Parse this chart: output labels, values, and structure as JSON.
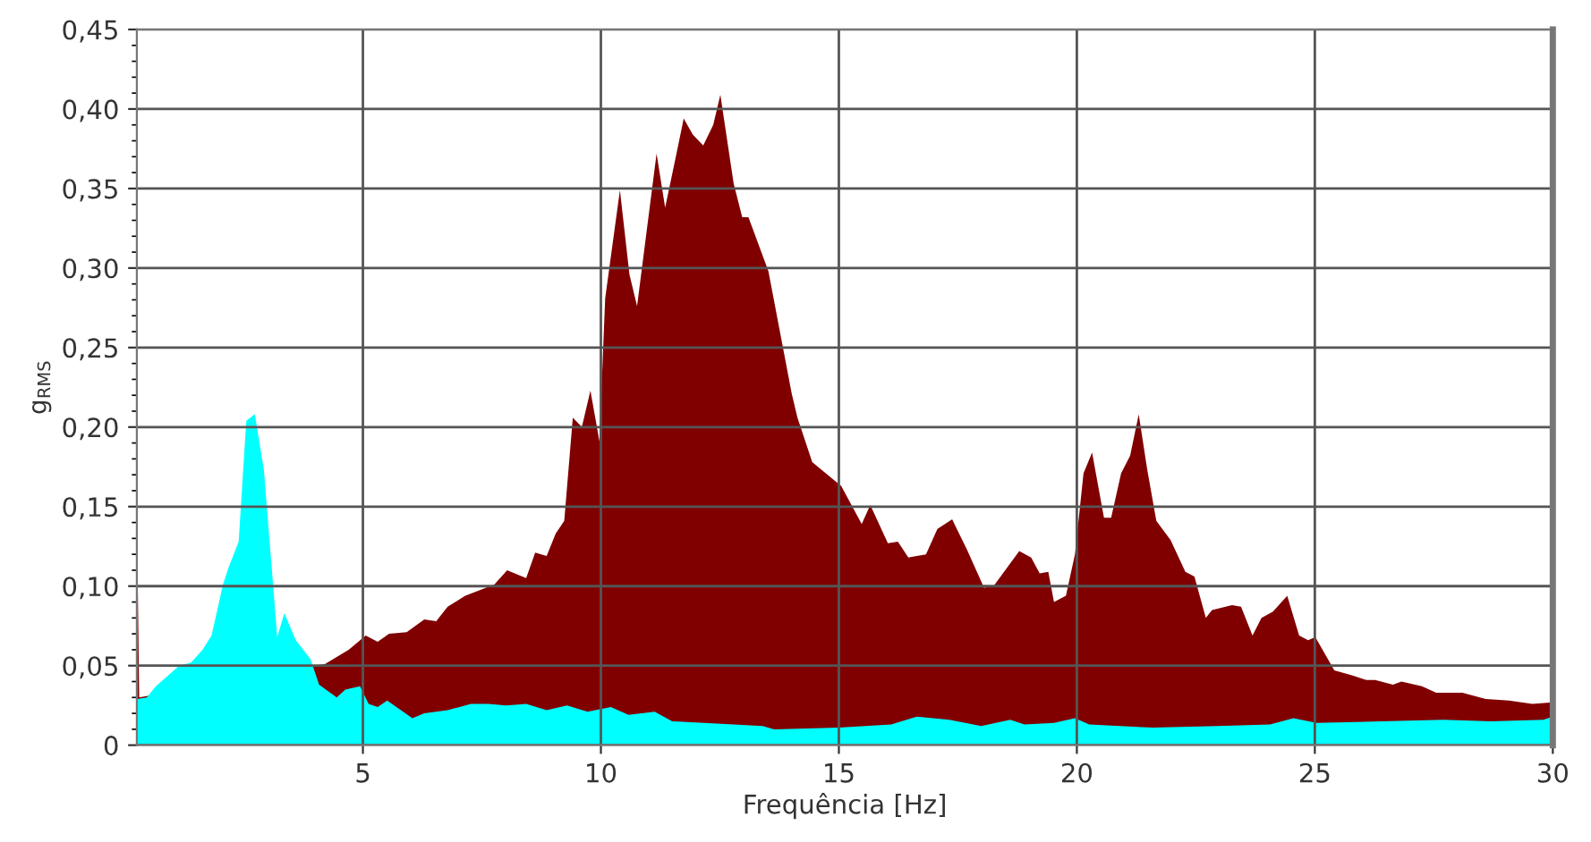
{
  "chart_data": {
    "type": "area",
    "xlabel": "Frequência [Hz]",
    "ylabel": "g$_{RMS}$",
    "xlim": [
      0.25,
      30
    ],
    "xticks": [
      5,
      10,
      15,
      20,
      25,
      30
    ],
    "ylim": [
      0,
      0.45
    ],
    "yticks": [
      0,
      {
        "value": 0.05,
        "label": "0,05"
      },
      {
        "value": 0.1,
        "label": "0,10"
      },
      {
        "value": 0.15,
        "label": "0,15"
      },
      {
        "value": 0.2,
        "label": "0,20"
      },
      {
        "value": 0.25,
        "label": "0,25"
      },
      {
        "value": 0.3,
        "label": "0,30"
      },
      {
        "value": 0.35,
        "label": "0,35"
      },
      {
        "value": 0.4,
        "label": "0,40"
      },
      {
        "value": 0.45,
        "label": "0,45"
      }
    ],
    "grid": true,
    "series": [
      {
        "color": "#800000",
        "x": [
          0.26,
          0.3,
          3.96,
          4.2,
          4.7,
          5.06,
          5.31,
          5.55,
          5.92,
          6.29,
          6.54,
          6.78,
          7.15,
          7.76,
          8.03,
          8.43,
          8.62,
          8.86,
          9.05,
          9.23,
          9.41,
          9.6,
          9.78,
          9.97,
          10.09,
          10.4,
          10.6,
          10.76,
          11.17,
          11.35,
          11.56,
          11.74,
          11.93,
          12.15,
          12.36,
          12.51,
          12.79,
          12.97,
          13.1,
          13.52,
          14.01,
          14.13,
          14.44,
          15.05,
          15.48,
          15.66,
          16.03,
          16.24,
          16.46,
          16.83,
          17.07,
          17.38,
          17.69,
          18.05,
          18.25,
          18.79,
          19.04,
          19.22,
          19.4,
          19.52,
          19.77,
          19.96,
          20.14,
          20.32,
          20.57,
          20.72,
          20.93,
          21.12,
          21.3,
          21.48,
          21.67,
          21.97,
          22.28,
          22.47,
          22.71,
          22.84,
          23.26,
          23.45,
          23.69,
          23.88,
          24.12,
          24.42,
          24.67,
          24.86,
          25.01,
          25.41,
          25.78,
          26.08,
          26.27,
          26.64,
          26.82,
          27.25,
          27.55,
          28.1,
          28.59,
          29.08,
          29.57,
          30.0
        ],
        "values": [
          0.124,
          0.03,
          0.05,
          0.051,
          0.06,
          0.069,
          0.065,
          0.07,
          0.071,
          0.079,
          0.078,
          0.087,
          0.094,
          0.101,
          0.11,
          0.105,
          0.121,
          0.119,
          0.133,
          0.141,
          0.206,
          0.2,
          0.223,
          0.191,
          0.281,
          0.349,
          0.296,
          0.276,
          0.372,
          0.338,
          0.368,
          0.394,
          0.384,
          0.377,
          0.39,
          0.409,
          0.353,
          0.332,
          0.332,
          0.298,
          0.221,
          0.206,
          0.178,
          0.163,
          0.139,
          0.151,
          0.127,
          0.128,
          0.118,
          0.12,
          0.136,
          0.142,
          0.123,
          0.099,
          0.1,
          0.122,
          0.118,
          0.108,
          0.109,
          0.09,
          0.094,
          0.12,
          0.171,
          0.184,
          0.143,
          0.143,
          0.171,
          0.182,
          0.208,
          0.173,
          0.141,
          0.129,
          0.109,
          0.106,
          0.08,
          0.085,
          0.088,
          0.087,
          0.069,
          0.08,
          0.084,
          0.094,
          0.069,
          0.066,
          0.068,
          0.047,
          0.044,
          0.041,
          0.041,
          0.038,
          0.04,
          0.037,
          0.033,
          0.033,
          0.029,
          0.028,
          0.026,
          0.027
        ]
      },
      {
        "color": "#00ffff",
        "x": [
          0.26,
          0.46,
          0.65,
          1.14,
          1.39,
          1.63,
          1.82,
          2.06,
          2.18,
          2.39,
          2.55,
          2.73,
          2.92,
          3.2,
          3.35,
          3.59,
          3.9,
          4.08,
          4.45,
          4.63,
          4.94,
          5.12,
          5.31,
          5.51,
          6.04,
          6.29,
          6.78,
          7.27,
          7.64,
          8.01,
          8.43,
          8.86,
          9.29,
          9.72,
          10.21,
          10.58,
          11.13,
          11.5,
          12.17,
          13.4,
          13.64,
          15.0,
          16.1,
          16.64,
          17.32,
          17.99,
          18.6,
          18.9,
          19.52,
          19.96,
          20.26,
          21.6,
          22.95,
          24.06,
          24.55,
          25.04,
          26.4,
          27.7,
          28.7,
          29.8,
          30.0
        ],
        "values": [
          0.029,
          0.03,
          0.037,
          0.05,
          0.052,
          0.06,
          0.069,
          0.101,
          0.112,
          0.128,
          0.204,
          0.208,
          0.173,
          0.068,
          0.083,
          0.066,
          0.054,
          0.038,
          0.03,
          0.035,
          0.037,
          0.026,
          0.024,
          0.028,
          0.017,
          0.02,
          0.022,
          0.026,
          0.026,
          0.025,
          0.026,
          0.022,
          0.025,
          0.021,
          0.024,
          0.019,
          0.021,
          0.015,
          0.014,
          0.012,
          0.01,
          0.011,
          0.013,
          0.018,
          0.016,
          0.012,
          0.016,
          0.013,
          0.014,
          0.017,
          0.013,
          0.011,
          0.012,
          0.013,
          0.017,
          0.014,
          0.015,
          0.016,
          0.015,
          0.016,
          0.018
        ]
      }
    ]
  }
}
